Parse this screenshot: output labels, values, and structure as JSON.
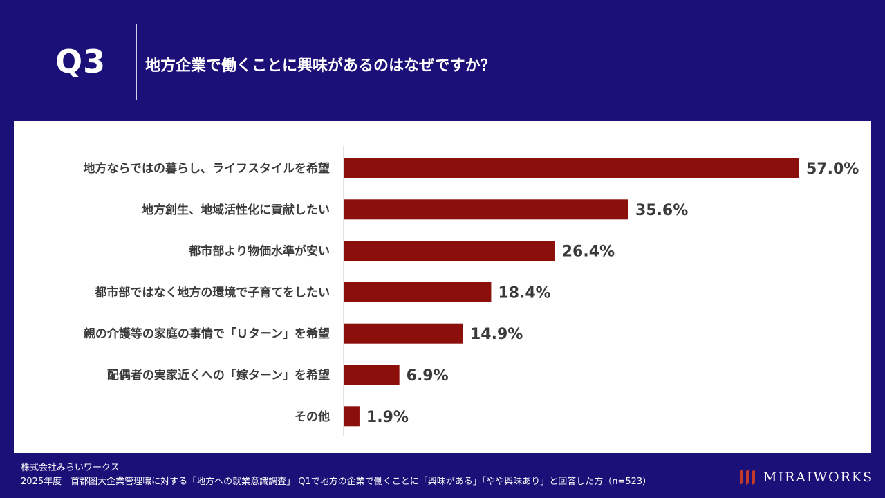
{
  "header": {
    "q_label": "Q3",
    "question": "地方企業で働くことに興味があるのはなぜですか？"
  },
  "chart_data": {
    "type": "bar",
    "orientation": "horizontal",
    "categories": [
      "地方ならではの暮らし、ライフスタイルを希望",
      "地方創生、地域活性化に貢献したい",
      "都市部より物価水準が安い",
      "都市部ではなく地方の環境で子育てをしたい",
      "親の介護等の家庭の事情で「Ｕターン」を希望",
      "配偶者の実家近くへの「嫁ターン」を希望",
      "その他"
    ],
    "values": [
      57.0,
      35.6,
      26.4,
      18.4,
      14.9,
      6.9,
      1.9
    ],
    "value_labels": [
      "57.0%",
      "35.6%",
      "26.4%",
      "18.4%",
      "14.9%",
      "6.9%",
      "1.9%"
    ],
    "xlim": [
      0,
      60
    ],
    "bar_color": "#8b0f0a",
    "title": "地方企業で働くことに興味があるのはなぜですか？"
  },
  "footer": {
    "company": "株式会社みらいワークス",
    "source": "2025年度　首都圏大企業管理職に対する「地方への就業意識調査」 Q1で地方の企業で働くことに「興味がある」「やや興味あり」と回答した方（n=523）"
  },
  "logo": {
    "text": "MIRAIWORKS"
  },
  "colors": {
    "background": "#1b0f78",
    "panel": "#ffffff",
    "bar": "#8b0f0a"
  }
}
